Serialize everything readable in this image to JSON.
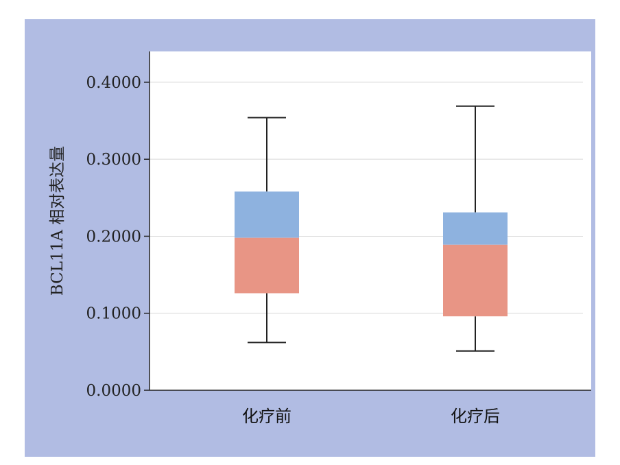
{
  "chart_data": {
    "type": "box",
    "ylabel": "BCL11A 相对表达量",
    "xlabel": "",
    "ylim": [
      0,
      0.44
    ],
    "yticks": [
      0.0,
      0.1,
      0.2,
      0.3,
      0.4
    ],
    "ytick_labels": [
      "0.0000",
      "0.1000",
      "0.2000",
      "0.3000",
      "0.4000"
    ],
    "grid": true,
    "categories": [
      "化疗前",
      "化疗后"
    ],
    "boxes": [
      {
        "category": "化疗前",
        "min": 0.062,
        "q1": 0.126,
        "median": 0.198,
        "q3": 0.258,
        "max": 0.354
      },
      {
        "category": "化疗后",
        "min": 0.051,
        "q1": 0.096,
        "median": 0.189,
        "q3": 0.231,
        "max": 0.369
      }
    ],
    "colors": {
      "lower_box": "#e89585",
      "upper_box": "#8eb2df",
      "background": "#b1bce3",
      "plot_area": "#ffffff",
      "gridline": "#d8d8d8"
    }
  }
}
